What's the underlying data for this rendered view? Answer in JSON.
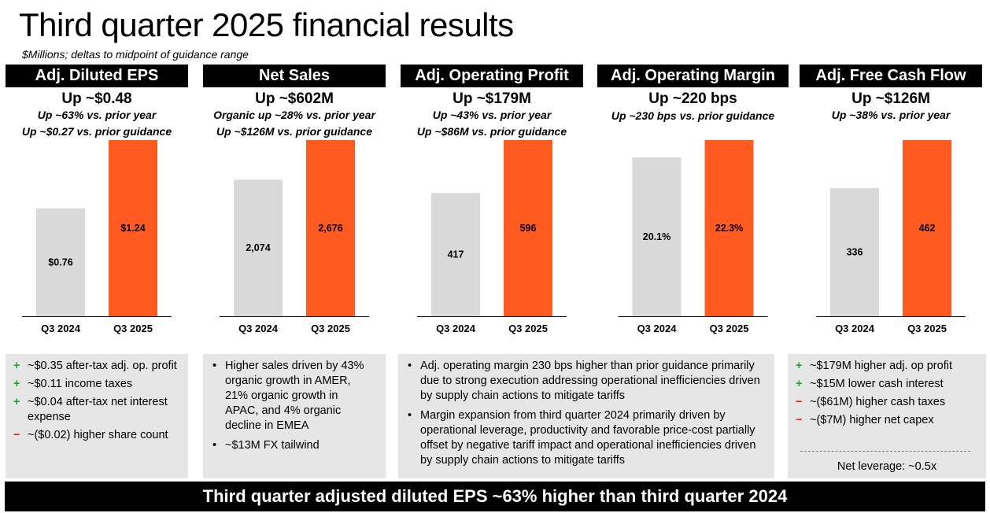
{
  "page": {
    "title": "Third quarter 2025 financial results",
    "subtitle": "$Millions; deltas to midpoint of guidance range",
    "footer": "Third quarter adjusted diluted EPS ~63% higher than third quarter 2024"
  },
  "colors": {
    "prior": "#d9d9d9",
    "current": "#ff5a1f",
    "header_bg": "#000000"
  },
  "panels": [
    {
      "header": "Adj. Diluted EPS",
      "headline": "Up ~$0.48",
      "sub": [
        "Up ~63% vs. prior year",
        "Up ~$0.27 vs. prior guidance"
      ]
    },
    {
      "header": "Net Sales",
      "headline": "Up ~$602M",
      "sub": [
        "Organic up ~28% vs. prior year",
        "Up ~$126M vs. prior guidance"
      ]
    },
    {
      "header": "Adj. Operating Profit",
      "headline": "Up ~$179M",
      "sub": [
        "Up ~43% vs. prior year",
        "Up ~$86M vs. prior guidance"
      ]
    },
    {
      "header": "Adj. Operating Margin",
      "headline": "Up ~220 bps",
      "sub": [
        "Up ~230 bps vs. prior guidance"
      ]
    },
    {
      "header": "Adj. Free Cash Flow",
      "headline": "Up ~$126M",
      "sub": [
        "Up ~38% vs. prior year"
      ]
    }
  ],
  "chart_data": [
    {
      "type": "bar",
      "title": "Adj. Diluted EPS",
      "categories": [
        "Q3 2024",
        "Q3 2025"
      ],
      "values": [
        0.76,
        1.24
      ],
      "labels": [
        "$0.76",
        "$1.24"
      ],
      "ylim": [
        0,
        1.24
      ]
    },
    {
      "type": "bar",
      "title": "Net Sales",
      "categories": [
        "Q3 2024",
        "Q3 2025"
      ],
      "values": [
        2074,
        2676
      ],
      "labels": [
        "2,074",
        "2,676"
      ],
      "ylim": [
        0,
        2676
      ]
    },
    {
      "type": "bar",
      "title": "Adj. Operating Profit",
      "categories": [
        "Q3 2024",
        "Q3 2025"
      ],
      "values": [
        417,
        596
      ],
      "labels": [
        "417",
        "596"
      ],
      "ylim": [
        0,
        596
      ]
    },
    {
      "type": "bar",
      "title": "Adj. Operating Margin",
      "categories": [
        "Q3 2024",
        "Q3 2025"
      ],
      "values": [
        20.1,
        22.3
      ],
      "labels": [
        "20.1%",
        "22.3%"
      ],
      "ylim": [
        0,
        22.3
      ]
    },
    {
      "type": "bar",
      "title": "Adj. Free Cash Flow",
      "categories": [
        "Q3 2024",
        "Q3 2025"
      ],
      "values": [
        336,
        462
      ],
      "labels": [
        "336",
        "462"
      ],
      "ylim": [
        0,
        462
      ]
    }
  ],
  "boxes": {
    "eps": [
      {
        "sign": "+",
        "text": "~$0.35 after-tax adj. op. profit"
      },
      {
        "sign": "+",
        "text": "~$0.11 income taxes"
      },
      {
        "sign": "+",
        "text": "~$0.04 after-tax net interest expense"
      },
      {
        "sign": "−",
        "text": "~($0.02) higher share count"
      }
    ],
    "sales": [
      "Higher sales driven by 43% organic growth in AMER, 21% organic growth in APAC, and 4% organic decline in EMEA",
      "~$13M FX tailwind"
    ],
    "margin": [
      "Adj. operating margin 230 bps higher than prior guidance primarily due to strong execution addressing operational inefficiencies driven by supply chain actions to mitigate tariffs",
      "Margin expansion from third quarter 2024 primarily driven by operational leverage, productivity and favorable price-cost partially offset by negative tariff impact and operational inefficiencies driven by supply chain actions to mitigate tariffs"
    ],
    "fcf": [
      {
        "sign": "+",
        "text": "~$179M higher adj. op profit"
      },
      {
        "sign": "+",
        "text": "~$15M lower cash interest"
      },
      {
        "sign": "−",
        "text": "~($61M) higher cash taxes"
      },
      {
        "sign": "−",
        "text": "~($7M) higher net capex"
      }
    ],
    "leverage": "Net leverage:  ~0.5x"
  }
}
